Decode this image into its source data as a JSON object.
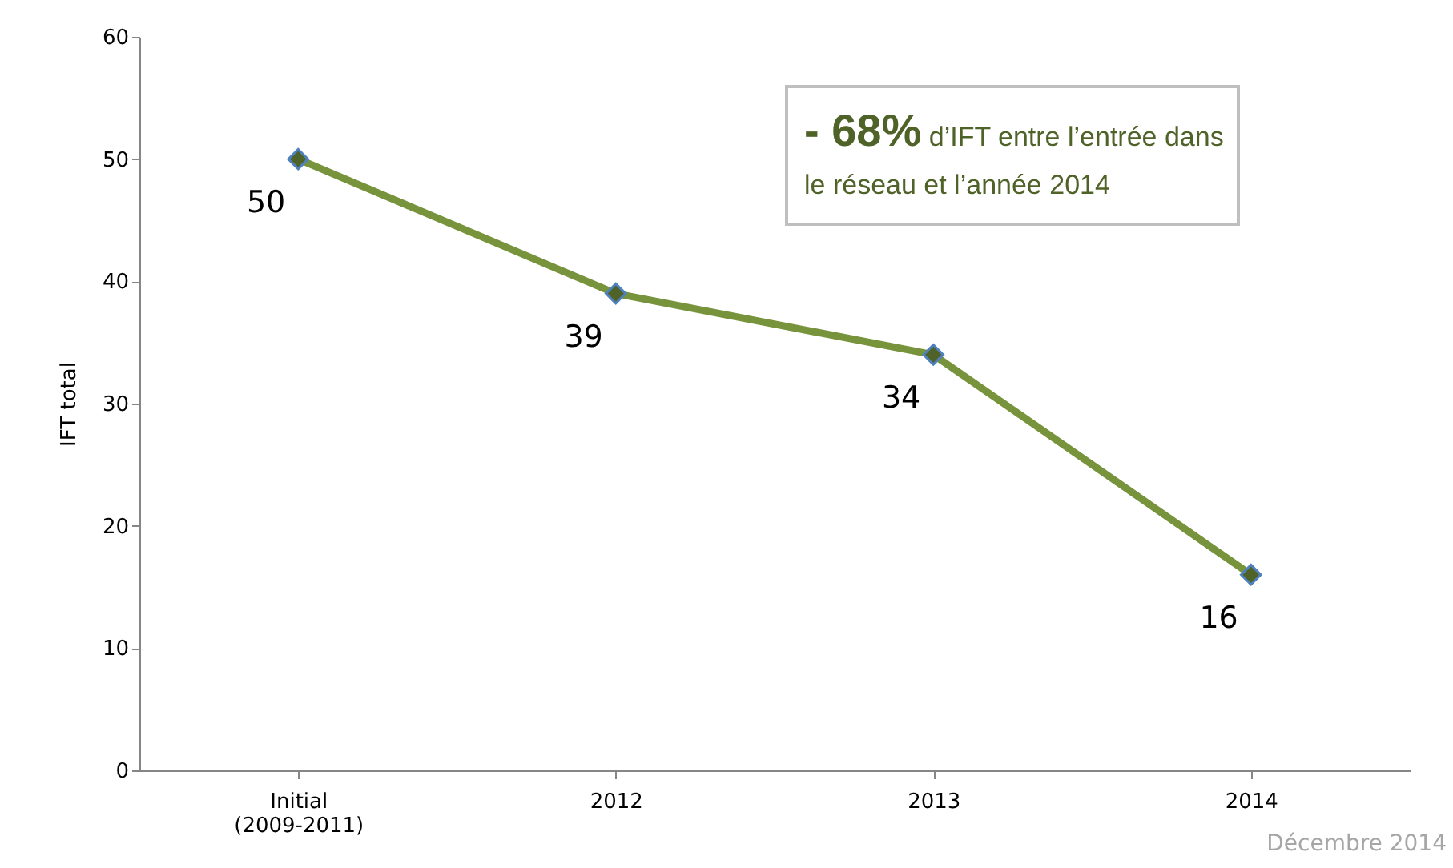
{
  "chart_data": {
    "type": "line",
    "ylabel": "IFT total",
    "categories": [
      "Initial\n(2009-2011)",
      "2012",
      "2013",
      "2014"
    ],
    "series": [
      {
        "color": "#77933c",
        "values": [
          50,
          39,
          34,
          16
        ]
      }
    ],
    "ylim": [
      0,
      60
    ],
    "yticks": [
      0,
      10,
      20,
      30,
      40,
      50,
      60
    ],
    "marker": "diamond",
    "data_labels": true,
    "grid": false,
    "annotations": [
      "- 68% d’IFT entre l’entrée dans le réseau et l’année 2014",
      "Décembre 2014"
    ]
  }
}
